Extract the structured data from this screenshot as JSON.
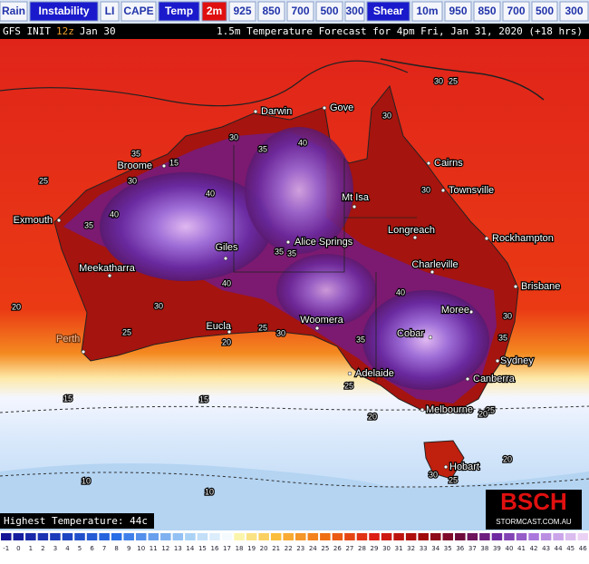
{
  "nav": {
    "tabs": [
      {
        "label": "Rain",
        "active": false
      },
      {
        "label": "Instability",
        "active": true
      },
      {
        "label": "LI",
        "active": false
      },
      {
        "label": "CAPE",
        "active": false
      },
      {
        "label": "Temp",
        "active": true
      },
      {
        "label": "2m",
        "active": true,
        "highlight": true
      },
      {
        "label": "925",
        "active": false
      },
      {
        "label": "850",
        "active": false
      },
      {
        "label": "700",
        "active": false
      },
      {
        "label": "500",
        "active": false
      },
      {
        "label": "300",
        "active": false
      },
      {
        "label": "Shear",
        "active": true
      },
      {
        "label": "10m",
        "active": false
      },
      {
        "label": "950",
        "active": false
      },
      {
        "label": "850",
        "active": false
      },
      {
        "label": "700",
        "active": false
      },
      {
        "label": "500",
        "active": false
      },
      {
        "label": "300",
        "active": false
      }
    ]
  },
  "header": {
    "model": "GFS INIT",
    "cycle": "12z",
    "date": "Jan 30",
    "title": "1.5m Temperature Forecast for 4pm Fri, Jan 31, 2020 (+18 hrs)"
  },
  "cities": [
    "Darwin",
    "Gove",
    "Cairns",
    "Townsville",
    "Broome",
    "Mt Isa",
    "Exmouth",
    "Longreach",
    "Rockhampton",
    "Giles",
    "Alice Springs",
    "Meekatharra",
    "Charleville",
    "Brisbane",
    "Moree",
    "Eucla",
    "Woomera",
    "Cobar",
    "Perth",
    "Sydney",
    "Adelaide",
    "Canberra",
    "Melbourne",
    "Hobart"
  ],
  "contour_labels": [
    25,
    30,
    15,
    35,
    30,
    35,
    40,
    40,
    35,
    30,
    40,
    35,
    35,
    40,
    30,
    20,
    30,
    25,
    25,
    20,
    30,
    35,
    40,
    30,
    35,
    25,
    25,
    20,
    15,
    15,
    20,
    10,
    10,
    20,
    25,
    30,
    30,
    25
  ],
  "legend": {
    "title": "Highest Temperature: 44c"
  },
  "brand": {
    "name": "BSCH",
    "url": "STORMCAST.COM.AU"
  },
  "scale": {
    "ticks": [
      -1,
      0,
      1,
      2,
      3,
      4,
      5,
      6,
      7,
      8,
      9,
      10,
      11,
      12,
      13,
      14,
      15,
      16,
      17,
      18,
      19,
      20,
      21,
      22,
      23,
      24,
      25,
      26,
      27,
      28,
      29,
      30,
      31,
      32,
      33,
      34,
      35,
      36,
      37,
      38,
      39,
      40,
      41,
      42,
      43,
      44,
      45,
      46
    ]
  }
}
